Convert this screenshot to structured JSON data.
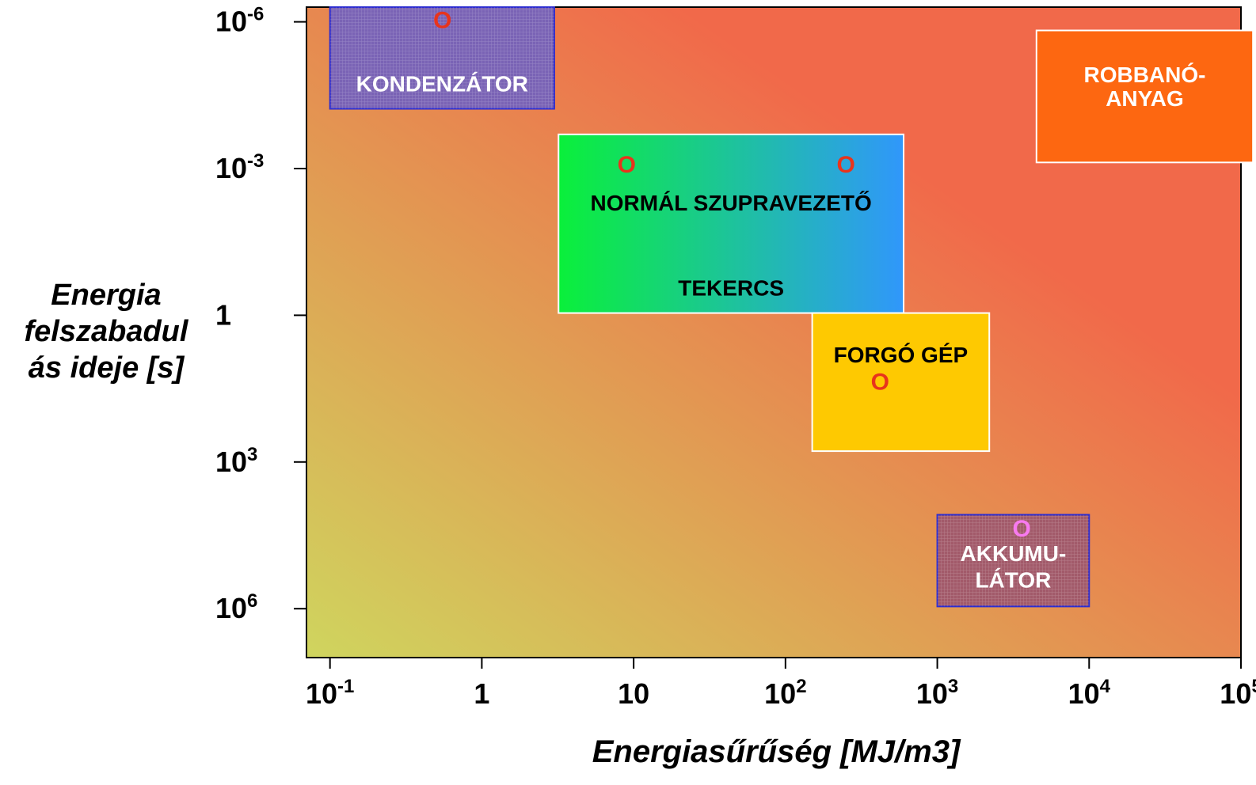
{
  "chart_data": {
    "type": "region",
    "xlabel": "Energiasűrűség [MJ/m3]",
    "ylabel_lines": [
      "Energia",
      "felszabadul",
      "ás ideje  [s]"
    ],
    "x_scale": "log",
    "y_scale": "log",
    "y_inverted": true,
    "xlim": [
      0.07,
      100000
    ],
    "ylim": [
      5e-07,
      10000000
    ],
    "x_ticks": [
      {
        "value": 0.1,
        "base": "10",
        "exp": "-1"
      },
      {
        "value": 1,
        "base": "1",
        "exp": ""
      },
      {
        "value": 10,
        "base": "10",
        "exp": ""
      },
      {
        "value": 100,
        "base": "10",
        "exp": "2"
      },
      {
        "value": 1000,
        "base": "10",
        "exp": "3"
      },
      {
        "value": 10000,
        "base": "10",
        "exp": "4"
      },
      {
        "value": 100000,
        "base": "10",
        "exp": "5"
      }
    ],
    "y_ticks": [
      {
        "value": 1e-06,
        "base": "10",
        "exp": "-6"
      },
      {
        "value": 0.001,
        "base": "10",
        "exp": "-3"
      },
      {
        "value": 1,
        "base": "1",
        "exp": ""
      },
      {
        "value": 1000,
        "base": "10",
        "exp": "3"
      },
      {
        "value": 1000000,
        "base": "10",
        "exp": "6"
      }
    ],
    "background": {
      "colors": [
        "#cfd55e",
        "#f1694a"
      ]
    },
    "regions": [
      {
        "name": "kondenzator",
        "label_lines": [
          "KONDENZÁTOR"
        ],
        "x": [
          0.1,
          3
        ],
        "y": [
          5e-07,
          6e-05
        ],
        "fill": "#7a63b5",
        "text_color": "#ffffff",
        "pattern": true,
        "label_y": [
          2e-05
        ]
      },
      {
        "name": "tekercs",
        "label_lines": [
          "NORMÁL SZUPRAVEZETŐ",
          "TEKERCS"
        ],
        "x": [
          3.2,
          600
        ],
        "y": [
          0.0002,
          0.9
        ],
        "fill": [
          "#0af03a",
          "#3097fb"
        ],
        "text_color": "#000000",
        "pattern": false,
        "label_y": [
          0.0055,
          0.3
        ]
      },
      {
        "name": "forgo-gep",
        "label_lines": [
          "FORGÓ GÉP"
        ],
        "x": [
          150,
          2200
        ],
        "y": [
          0.9,
          600
        ],
        "fill": "#fec901",
        "text_color": "#000000",
        "pattern": false,
        "label_y": [
          7
        ]
      },
      {
        "name": "robbanoanyag",
        "label_lines": [
          "ROBBANÓ-",
          "ANYAG"
        ],
        "x": [
          4500,
          120000
        ],
        "y": [
          1.5e-06,
          0.00075
        ],
        "fill": "#fd6711",
        "text_color": "#ffffff",
        "pattern": false,
        "label_y": [
          1.3e-05,
          4e-05
        ]
      },
      {
        "name": "akkumulator",
        "label_lines": [
          "AKKUMU-",
          "LÁTOR"
        ],
        "x": [
          1000,
          10000
        ],
        "y": [
          12000,
          900000
        ],
        "fill": "#a25a6a",
        "text_color": "#ffffff",
        "pattern": true,
        "label_y": [
          80000,
          280000
        ]
      }
    ],
    "markers": [
      {
        "symbol": "O",
        "x": 0.55,
        "y": 1e-06,
        "color": "#e8341c"
      },
      {
        "symbol": "O",
        "x": 9,
        "y": 0.0009,
        "color": "#e8341c"
      },
      {
        "symbol": "O",
        "x": 250,
        "y": 0.0009,
        "color": "#e8341c"
      },
      {
        "symbol": "O",
        "x": 420,
        "y": 25,
        "color": "#e8341c"
      },
      {
        "symbol": "O",
        "x": 3600,
        "y": 25000,
        "color": "#f87af0"
      }
    ]
  }
}
